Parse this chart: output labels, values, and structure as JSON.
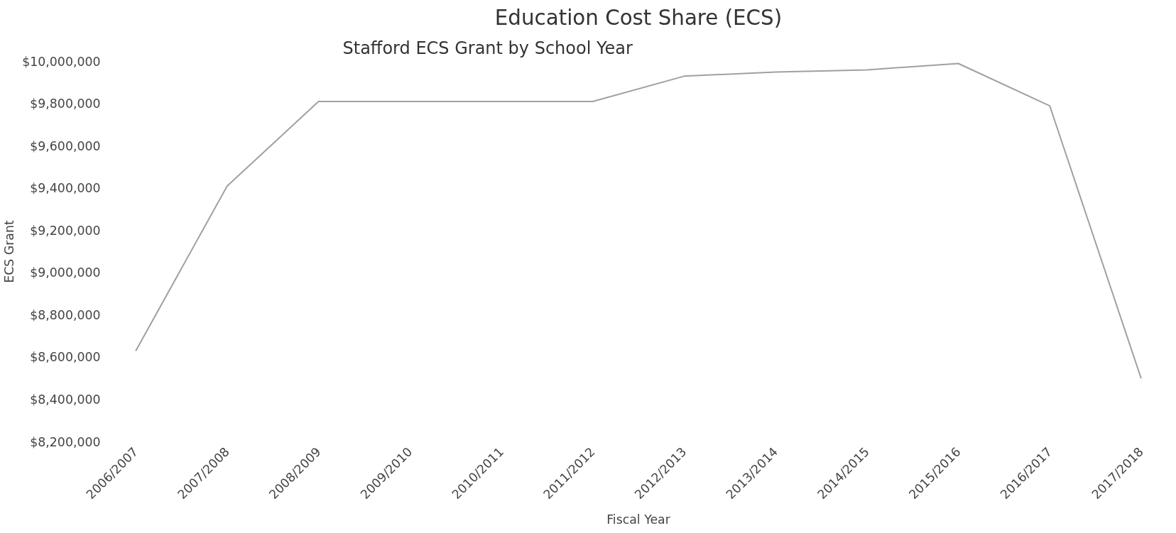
{
  "chart_data": {
    "type": "line",
    "title": "Education Cost Share (ECS)",
    "subtitle": "Stafford ECS Grant by School Year",
    "xlabel": "Fiscal Year",
    "ylabel": "ECS Grant",
    "categories": [
      "2006/2007",
      "2007/2008",
      "2008/2009",
      "2009/2010",
      "2010/2011",
      "2011/2012",
      "2012/2013",
      "2013/2014",
      "2014/2015",
      "2015/2016",
      "2016/2017",
      "2017/2018"
    ],
    "series": [
      {
        "color": "#a0a0a0",
        "values": [
          8630000,
          9410000,
          9810000,
          9810000,
          9810000,
          9810000,
          9930000,
          9950000,
          9960000,
          9990000,
          9790000,
          8500000
        ]
      }
    ],
    "ylim": [
      8200000,
      10000000
    ],
    "yticks": [
      {
        "value": 8200000,
        "label": "$8,200,000"
      },
      {
        "value": 8400000,
        "label": "$8,400,000"
      },
      {
        "value": 8600000,
        "label": "$8,600,000"
      },
      {
        "value": 8800000,
        "label": "$8,800,000"
      },
      {
        "value": 9000000,
        "label": "$9,000,000"
      },
      {
        "value": 9200000,
        "label": "$9,200,000"
      },
      {
        "value": 9400000,
        "label": "$9,400,000"
      },
      {
        "value": 9600000,
        "label": "$9,600,000"
      },
      {
        "value": 9800000,
        "label": "$9,800,000"
      },
      {
        "value": 10000000,
        "label": "$10,000,000"
      }
    ],
    "grid": false,
    "marker": "none",
    "line_style": "solid"
  }
}
